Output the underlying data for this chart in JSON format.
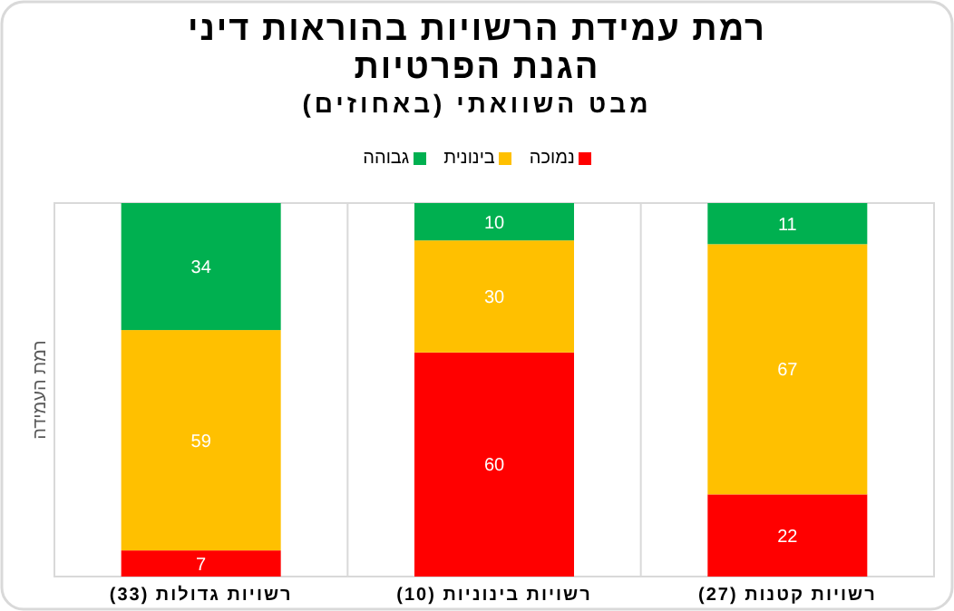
{
  "chart_data": {
    "type": "bar",
    "stacked": true,
    "title": "רמת עמידת הרשויות בהוראות דיני הגנת הפרטיות",
    "subtitle": "מבט השוואתי (באחוזים)",
    "ylabel": "רמת העמידה",
    "categories": [
      "רשויות גדולות (33)",
      "רשויות בינוניות (10)",
      "רשויות קטנות (27)"
    ],
    "series": [
      {
        "name": "נמוכה",
        "color": "#ff0000",
        "values": [
          7,
          60,
          22
        ]
      },
      {
        "name": "בינונית",
        "color": "#ffc000",
        "values": [
          59,
          30,
          67
        ]
      },
      {
        "name": "גבוהה",
        "color": "#00b050",
        "values": [
          34,
          10,
          11
        ]
      }
    ],
    "tick_labels": "x",
    "data_labels": true,
    "legend": "top"
  }
}
